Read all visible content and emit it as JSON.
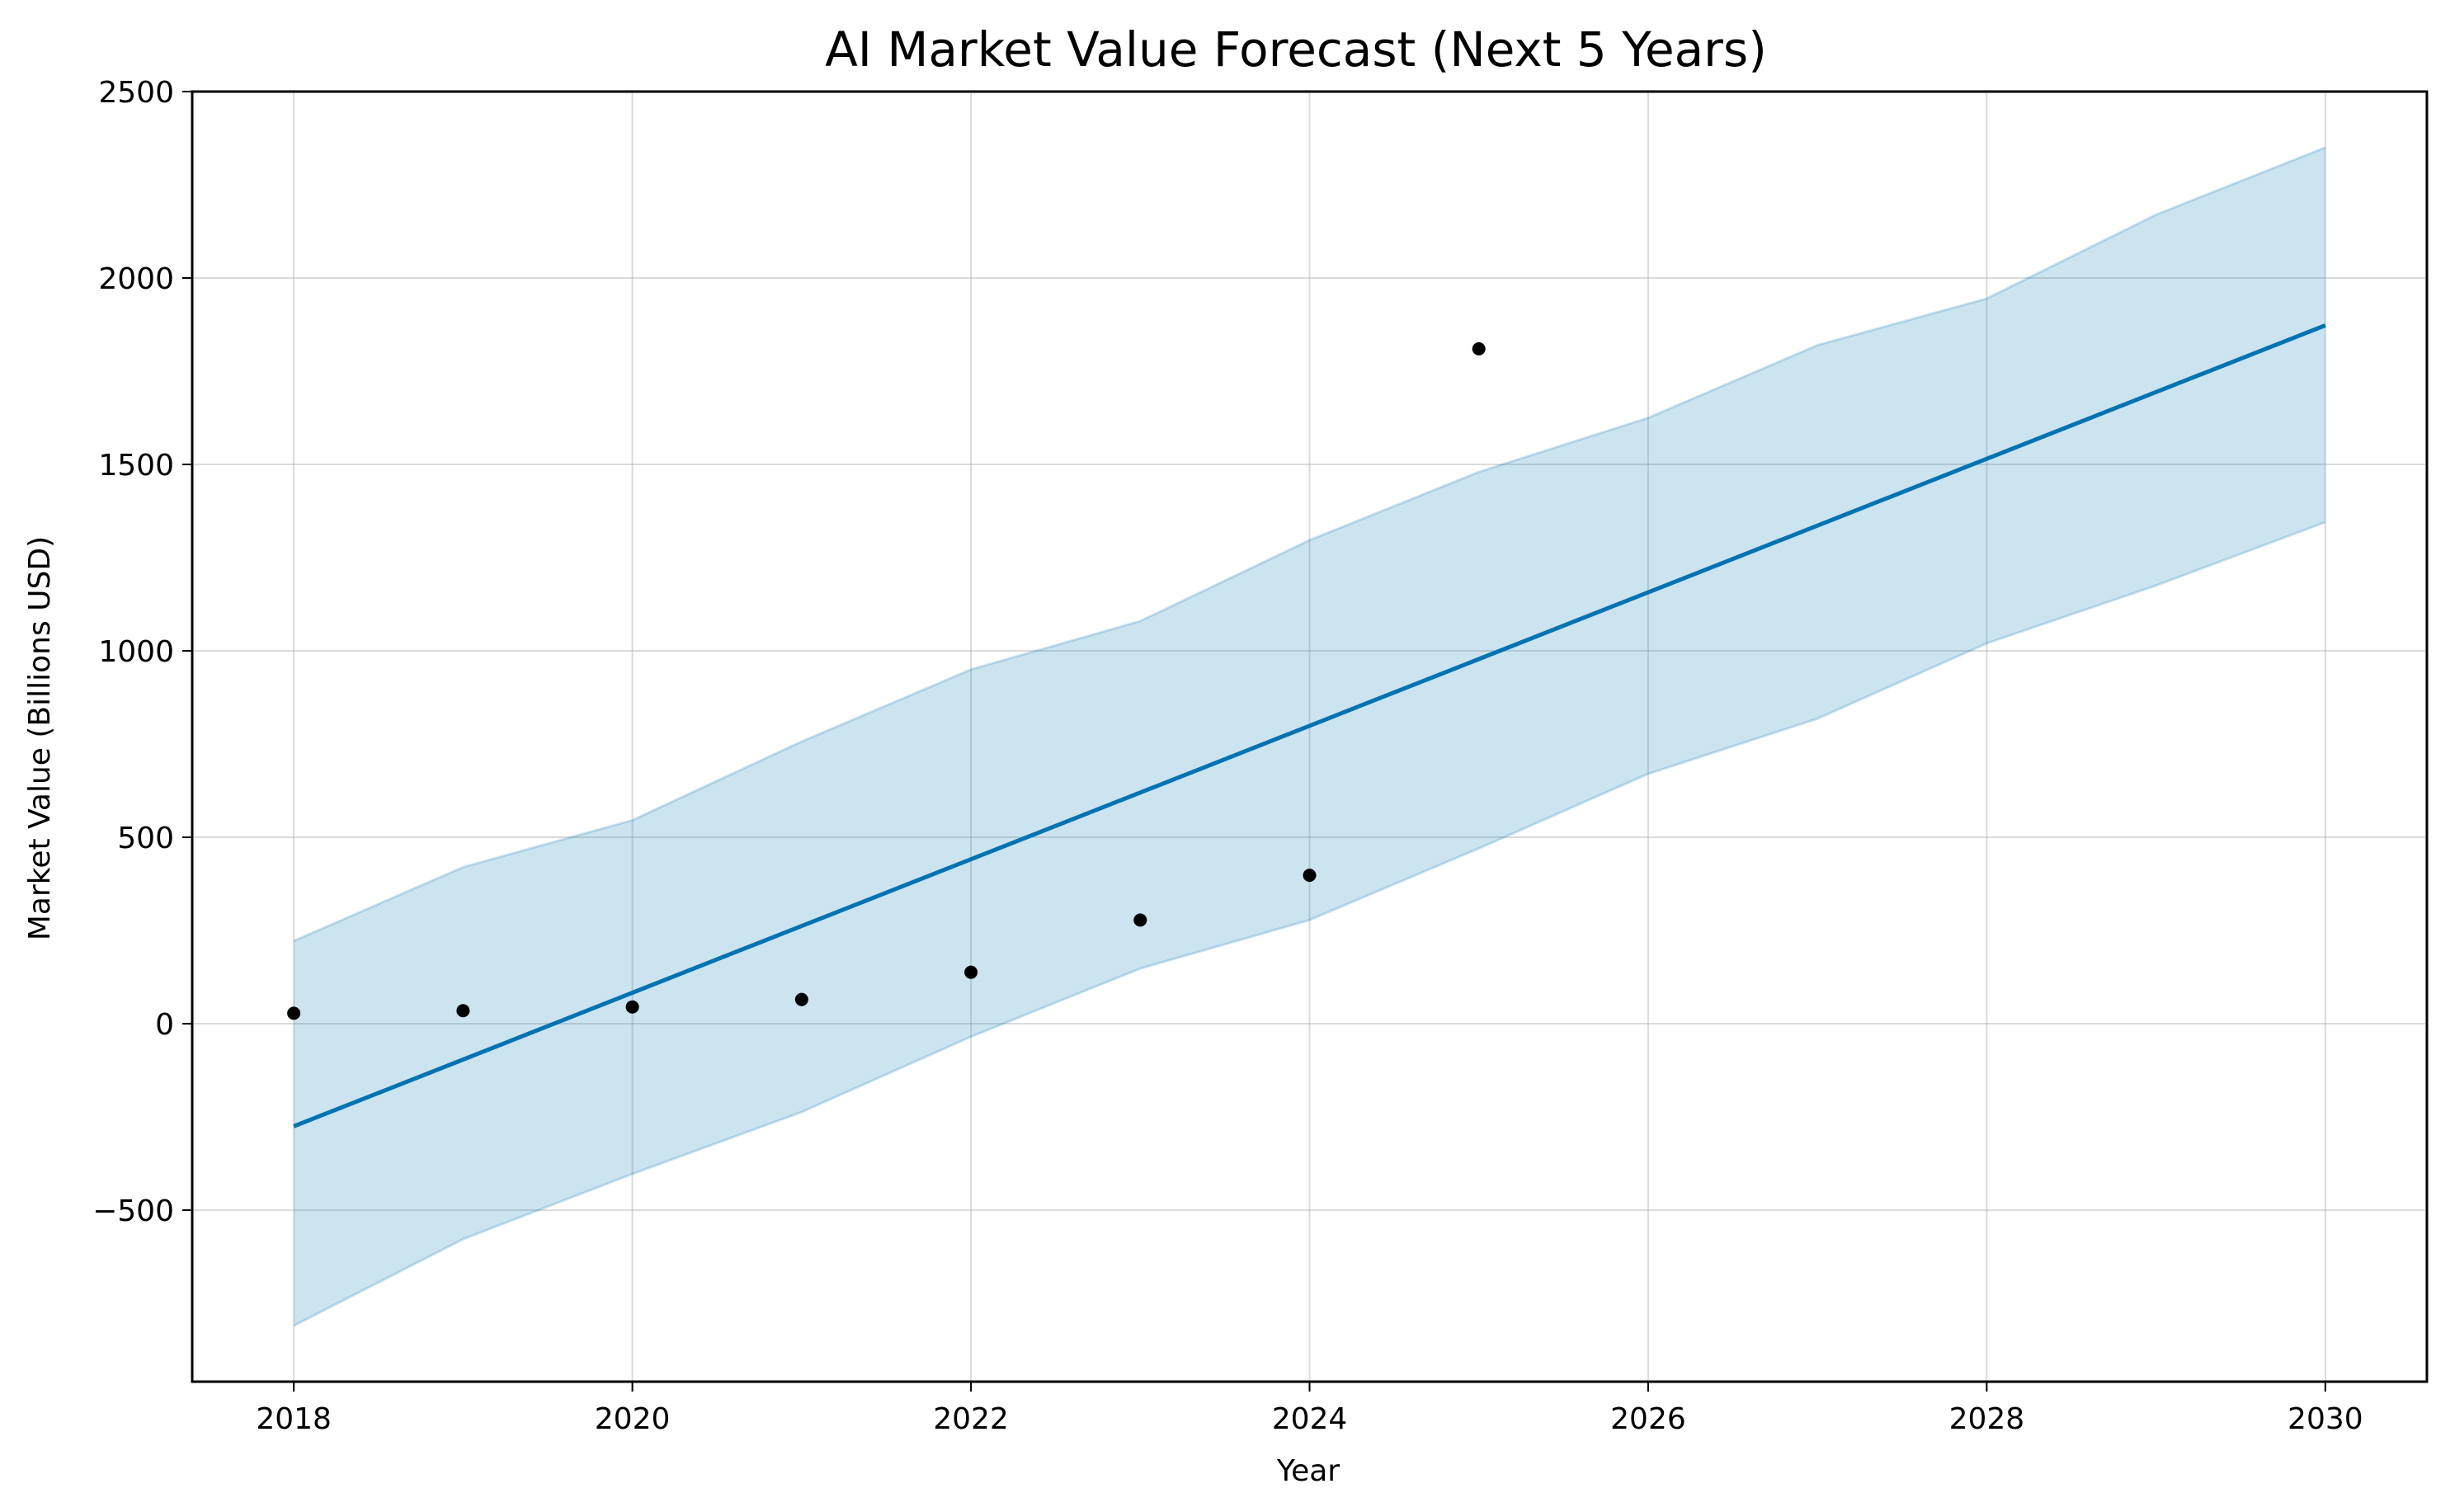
{
  "chart_data": {
    "type": "line",
    "title": "AI Market Value Forecast (Next 5 Years)",
    "xlabel": "Year",
    "ylabel": "Market Value (Billions USD)",
    "xlim": [
      2017.4,
      2030.6
    ],
    "ylim": [
      -960,
      2500
    ],
    "xticks": [
      2018,
      2020,
      2022,
      2024,
      2026,
      2028,
      2030
    ],
    "yticks": [
      -500,
      0,
      500,
      1000,
      1500,
      2000,
      2500
    ],
    "ytick_labels": [
      "−500",
      "0",
      "500",
      "1000",
      "1500",
      "2000",
      "2500"
    ],
    "grid": true,
    "colors": {
      "forecast": "#0072b2",
      "band": "#0072b2",
      "observed": "#000000"
    },
    "observed": {
      "x": [
        2018,
        2019,
        2020,
        2021,
        2022,
        2023,
        2024,
        2025
      ],
      "y": [
        28,
        35,
        45,
        65,
        138,
        278,
        398,
        1810
      ]
    },
    "forecast": {
      "x": [
        2018,
        2019,
        2020,
        2021,
        2022,
        2023,
        2024,
        2025,
        2026,
        2027,
        2028,
        2029,
        2030
      ],
      "y": [
        -275,
        -96,
        83,
        262,
        441,
        620,
        799,
        978,
        1157,
        1336,
        1515,
        1694,
        1873
      ],
      "upper": [
        222,
        420,
        546,
        757,
        950,
        1080,
        1297,
        1480,
        1625,
        1820,
        1945,
        2170,
        2350
      ],
      "lower": [
        -810,
        -578,
        -403,
        -237,
        -35,
        148,
        278,
        470,
        670,
        818,
        1020,
        1175,
        1345
      ]
    }
  }
}
